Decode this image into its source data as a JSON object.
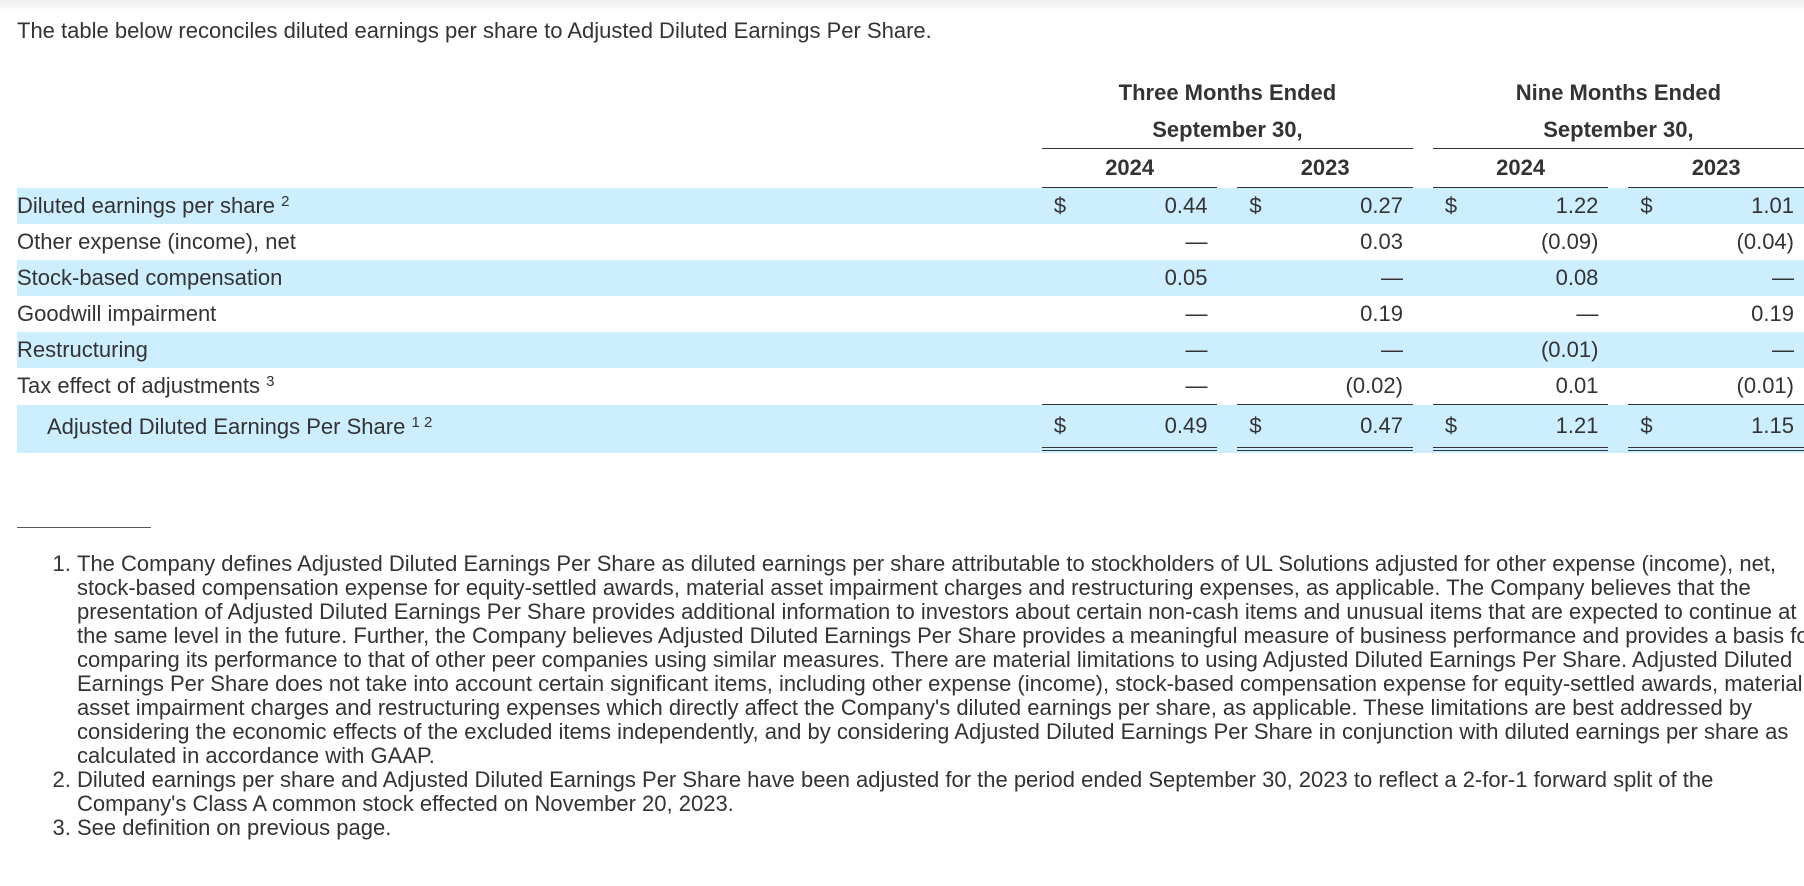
{
  "intro": "The table below reconciles diluted earnings per share to Adjusted Diluted Earnings Per Share.",
  "table": {
    "periods": [
      {
        "label": "Three Months Ended September 30,",
        "years": [
          "2024",
          "2023"
        ]
      },
      {
        "label": "Nine Months Ended September 30,",
        "years": [
          "2024",
          "2023"
        ]
      }
    ],
    "rows": [
      {
        "label": "Diluted earnings per share",
        "sup": "2",
        "dollar": true,
        "values": [
          "0.44",
          "0.27",
          "1.22",
          "1.01"
        ]
      },
      {
        "label": "Other expense (income), net",
        "sup": "",
        "dollar": false,
        "values": [
          "—",
          "0.03",
          "(0.09)",
          "(0.04)"
        ]
      },
      {
        "label": "Stock-based compensation",
        "sup": "",
        "dollar": false,
        "values": [
          "0.05",
          "—",
          "0.08",
          "—"
        ]
      },
      {
        "label": "Goodwill impairment",
        "sup": "",
        "dollar": false,
        "values": [
          "—",
          "0.19",
          "—",
          "0.19"
        ]
      },
      {
        "label": "Restructuring",
        "sup": "",
        "dollar": false,
        "values": [
          "—",
          "—",
          "(0.01)",
          "—"
        ]
      },
      {
        "label": "Tax effect of adjustments",
        "sup": "3",
        "dollar": false,
        "values": [
          "—",
          "(0.02)",
          "0.01",
          "(0.01)"
        ]
      }
    ],
    "total": {
      "label": "Adjusted Diluted Earnings Per Share",
      "sup": "1 2",
      "dollar_sign": "$",
      "values": [
        "0.49",
        "0.47",
        "1.21",
        "1.15"
      ]
    },
    "dollar_sign": "$"
  },
  "footnotes": [
    "The Company defines Adjusted Diluted Earnings Per Share as diluted earnings per share attributable to stockholders of UL Solutions adjusted for other expense (income), net, stock-based compensation expense for equity-settled awards, material asset impairment charges and restructuring expenses, as applicable. The Company believes that the presentation of Adjusted Diluted Earnings Per Share provides additional information to investors about certain non-cash items and unusual items that are expected to continue at the same level in the future. Further, the Company believes Adjusted Diluted Earnings Per Share provides a meaningful measure of business performance and provides a basis for comparing its performance to that of other peer companies using similar measures. There are material limitations to using Adjusted Diluted Earnings Per Share. Adjusted Diluted Earnings Per Share does not take into account certain significant items, including other expense (income), stock-based compensation expense for equity-settled awards, material asset impairment charges and restructuring expenses which directly affect the Company's diluted earnings per share, as applicable. These limitations are best addressed by considering the economic effects of the excluded items independently, and by considering Adjusted Diluted Earnings Per Share in conjunction with diluted earnings per share as calculated in accordance with GAAP.",
    "Diluted earnings per share and Adjusted Diluted Earnings Per Share have been adjusted for the period ended September 30, 2023 to reflect a 2-for-1 forward split of the Company's Class A common stock effected on November 20, 2023.",
    "See definition on previous page."
  ],
  "colors": {
    "row_shade": "#cceeff",
    "text": "#333333"
  }
}
